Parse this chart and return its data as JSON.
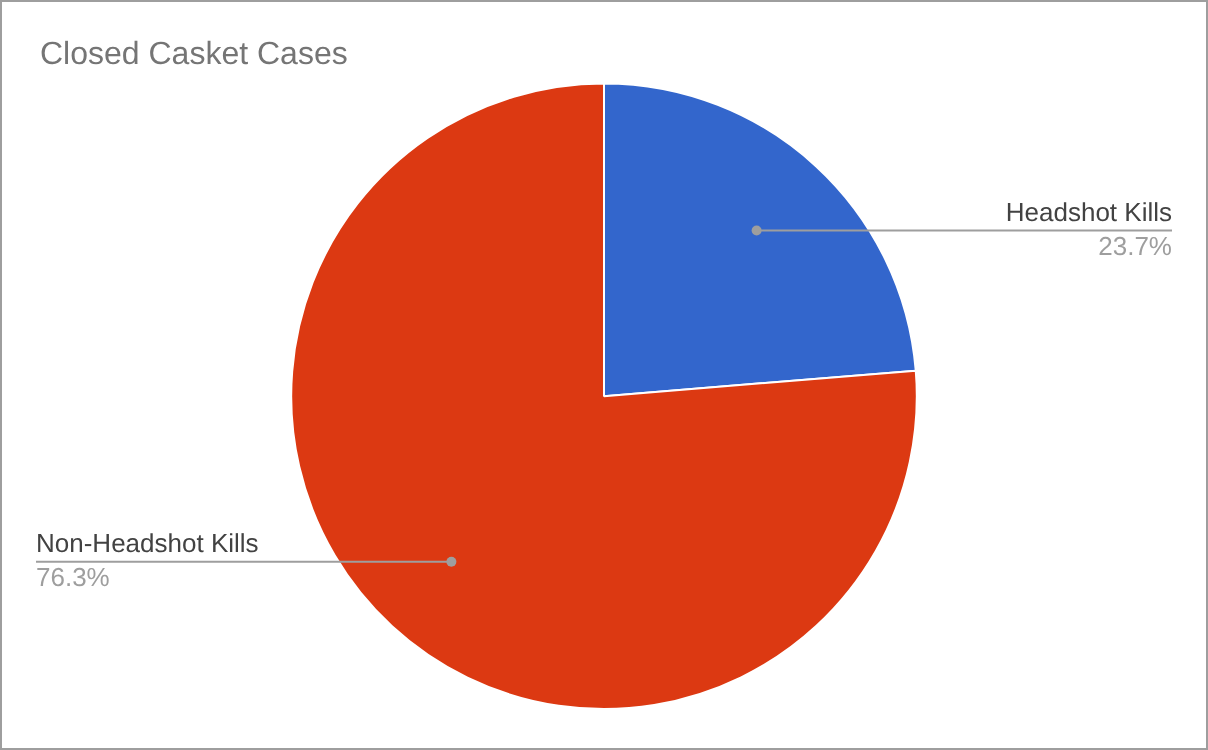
{
  "chart_data": {
    "type": "pie",
    "title": "Closed Casket Cases",
    "categories": [
      "Headshot Kills",
      "Non-Headshot Kills"
    ],
    "values": [
      23.7,
      76.3
    ],
    "colors": [
      "#3366cc",
      "#dc3912"
    ],
    "value_labels": [
      "23.7%",
      "76.3%"
    ],
    "legend": false
  }
}
